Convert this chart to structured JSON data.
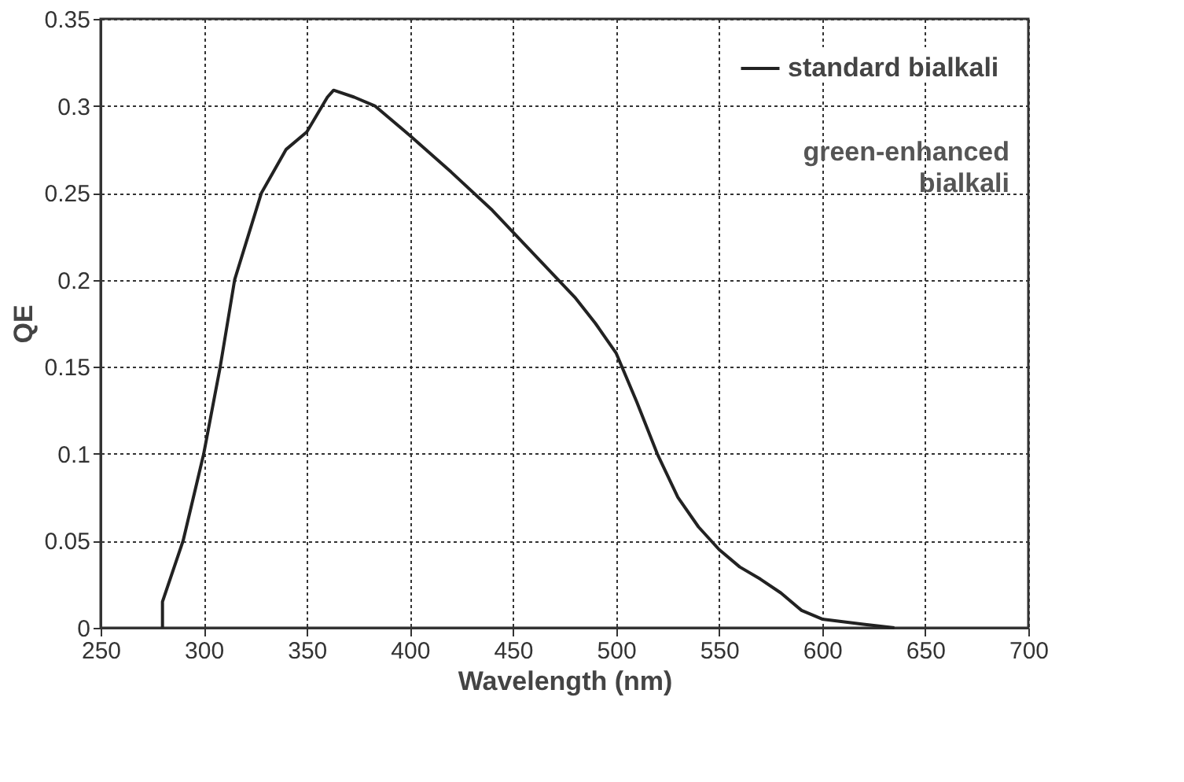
{
  "chart_data": {
    "type": "line",
    "xlabel": "Wavelength (nm)",
    "ylabel": "QE",
    "x": [
      280,
      280,
      290,
      300,
      308,
      315,
      328,
      340,
      350,
      360,
      363,
      373,
      383,
      400,
      420,
      440,
      460,
      480,
      490,
      500,
      510,
      520,
      530,
      540,
      550,
      560,
      570,
      580,
      590,
      600,
      620,
      635
    ],
    "series": [
      {
        "name": "standard bialkali",
        "color": "#222222",
        "values": [
          0,
          0.015,
          0.05,
          0.1,
          0.15,
          0.2,
          0.25,
          0.275,
          0.285,
          0.305,
          0.309,
          0.305,
          0.3,
          0.283,
          0.262,
          0.24,
          0.215,
          0.19,
          0.175,
          0.158,
          0.13,
          0.1,
          0.075,
          0.058,
          0.045,
          0.035,
          0.028,
          0.02,
          0.01,
          0.005,
          0.002,
          0
        ]
      }
    ],
    "xlim": [
      250,
      700
    ],
    "xticks": [
      250,
      300,
      350,
      400,
      450,
      500,
      550,
      600,
      650,
      700
    ],
    "ylim": [
      0,
      0.35
    ],
    "yticks": [
      0,
      0.05,
      0.1,
      0.15,
      0.2,
      0.25,
      0.3,
      0.35
    ],
    "grid": true,
    "legend": "top right",
    "line_style": "solid",
    "marker": "none",
    "annotations": [
      "green-enhanced bialkali"
    ]
  }
}
